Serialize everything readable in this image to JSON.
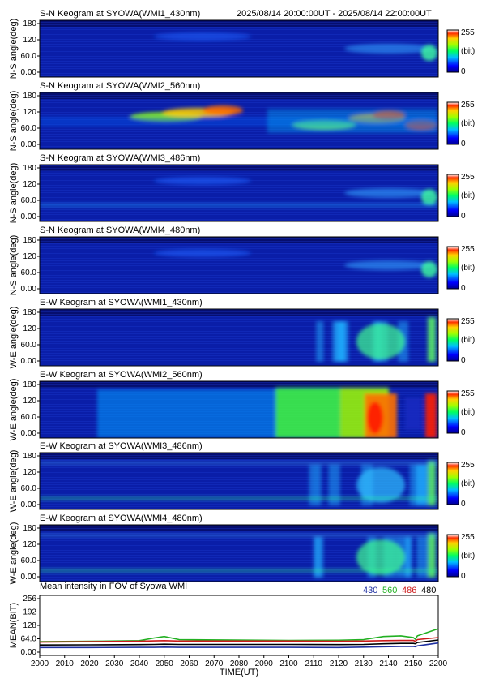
{
  "header": {
    "time_range": "2025/08/14 20:00:00UT - 2025/08/14 22:00:00UT"
  },
  "colorbar": {
    "max_label": "255",
    "unit_label": "(bit)",
    "min_label": "0"
  },
  "keogram_yticks": [
    "180",
    "120",
    "60.0",
    "0.00"
  ],
  "chart_data": [
    {
      "type": "heatmap",
      "title": "S-N Keogram at SYOWA(WMI1_430nm)",
      "ylabel": "N-S angle(deg)",
      "ylim": [
        0,
        180
      ],
      "xlim": [
        2000,
        2200
      ],
      "zlim": [
        0,
        255
      ],
      "colormap": "rainbow",
      "intensity_level": "low"
    },
    {
      "type": "heatmap",
      "title": "S-N Keogram at SYOWA(WMI2_560nm)",
      "ylabel": "N-S angle(deg)",
      "ylim": [
        0,
        180
      ],
      "xlim": [
        2000,
        2200
      ],
      "zlim": [
        0,
        255
      ],
      "colormap": "rainbow",
      "intensity_level": "high"
    },
    {
      "type": "heatmap",
      "title": "S-N Keogram at SYOWA(WMI3_486nm)",
      "ylabel": "N-S angle(deg)",
      "ylim": [
        0,
        180
      ],
      "xlim": [
        2000,
        2200
      ],
      "zlim": [
        0,
        255
      ],
      "colormap": "rainbow",
      "intensity_level": "low"
    },
    {
      "type": "heatmap",
      "title": "S-N Keogram at SYOWA(WMI4_480nm)",
      "ylabel": "N-S angle(deg)",
      "ylim": [
        0,
        180
      ],
      "xlim": [
        2000,
        2200
      ],
      "zlim": [
        0,
        255
      ],
      "colormap": "rainbow",
      "intensity_level": "low"
    },
    {
      "type": "heatmap",
      "title": "E-W Keogram at SYOWA(WMI1_430nm)",
      "ylabel": "W-E angle(deg)",
      "ylim": [
        0,
        180
      ],
      "xlim": [
        2000,
        2200
      ],
      "zlim": [
        0,
        255
      ],
      "colormap": "rainbow",
      "intensity_level": "medium"
    },
    {
      "type": "heatmap",
      "title": "E-W Keogram at SYOWA(WMI2_560nm)",
      "ylabel": "W-E angle(deg)",
      "ylim": [
        0,
        180
      ],
      "xlim": [
        2000,
        2200
      ],
      "zlim": [
        0,
        255
      ],
      "colormap": "rainbow",
      "intensity_level": "high"
    },
    {
      "type": "heatmap",
      "title": "E-W Keogram at SYOWA(WMI3_486nm)",
      "ylabel": "W-E angle(deg)",
      "ylim": [
        0,
        180
      ],
      "xlim": [
        2000,
        2200
      ],
      "zlim": [
        0,
        255
      ],
      "colormap": "rainbow",
      "intensity_level": "low"
    },
    {
      "type": "heatmap",
      "title": "E-W Keogram at SYOWA(WMI4_480nm)",
      "ylabel": "W-E angle(deg)",
      "ylim": [
        0,
        180
      ],
      "xlim": [
        2000,
        2200
      ],
      "zlim": [
        0,
        255
      ],
      "colormap": "rainbow",
      "intensity_level": "medium"
    },
    {
      "type": "line",
      "title": "Mean intensity in FOV of Syowa WMI",
      "xlabel": "TIME(UT)",
      "ylabel": "MEAN(BIT)",
      "ylim": [
        0,
        256
      ],
      "xlim": [
        2000,
        2200
      ],
      "x_ticks": [
        "2000",
        "2010",
        "2020",
        "2030",
        "2040",
        "2050",
        "2060",
        "2070",
        "2080",
        "2090",
        "2100",
        "2110",
        "2120",
        "2130",
        "2140",
        "2150",
        "2200"
      ],
      "y_ticks": [
        "256",
        "192",
        "128",
        "64.0",
        "0.00"
      ],
      "grid": false,
      "legend": "top-right",
      "x": [
        2000,
        2020,
        2040,
        2046,
        2050,
        2056,
        2100,
        2120,
        2130,
        2138,
        2145,
        2150,
        2154,
        2158,
        2200
      ],
      "series": [
        {
          "name": "430",
          "color": "#1e2fa0",
          "values": [
            22,
            22,
            23,
            23,
            24,
            23,
            23,
            22,
            24,
            26,
            27,
            27,
            26,
            30,
            44
          ]
        },
        {
          "name": "560",
          "color": "#22b022",
          "values": [
            50,
            52,
            55,
            68,
            75,
            60,
            56,
            57,
            60,
            75,
            78,
            70,
            62,
            78,
            112
          ]
        },
        {
          "name": "486",
          "color": "#cc1a1a",
          "values": [
            48,
            50,
            52,
            54,
            55,
            53,
            53,
            52,
            53,
            55,
            56,
            56,
            52,
            60,
            70
          ]
        },
        {
          "name": "480",
          "color": "#000000",
          "values": [
            34,
            35,
            36,
            37,
            38,
            37,
            37,
            36,
            37,
            40,
            42,
            42,
            40,
            46,
            58
          ]
        }
      ]
    }
  ]
}
